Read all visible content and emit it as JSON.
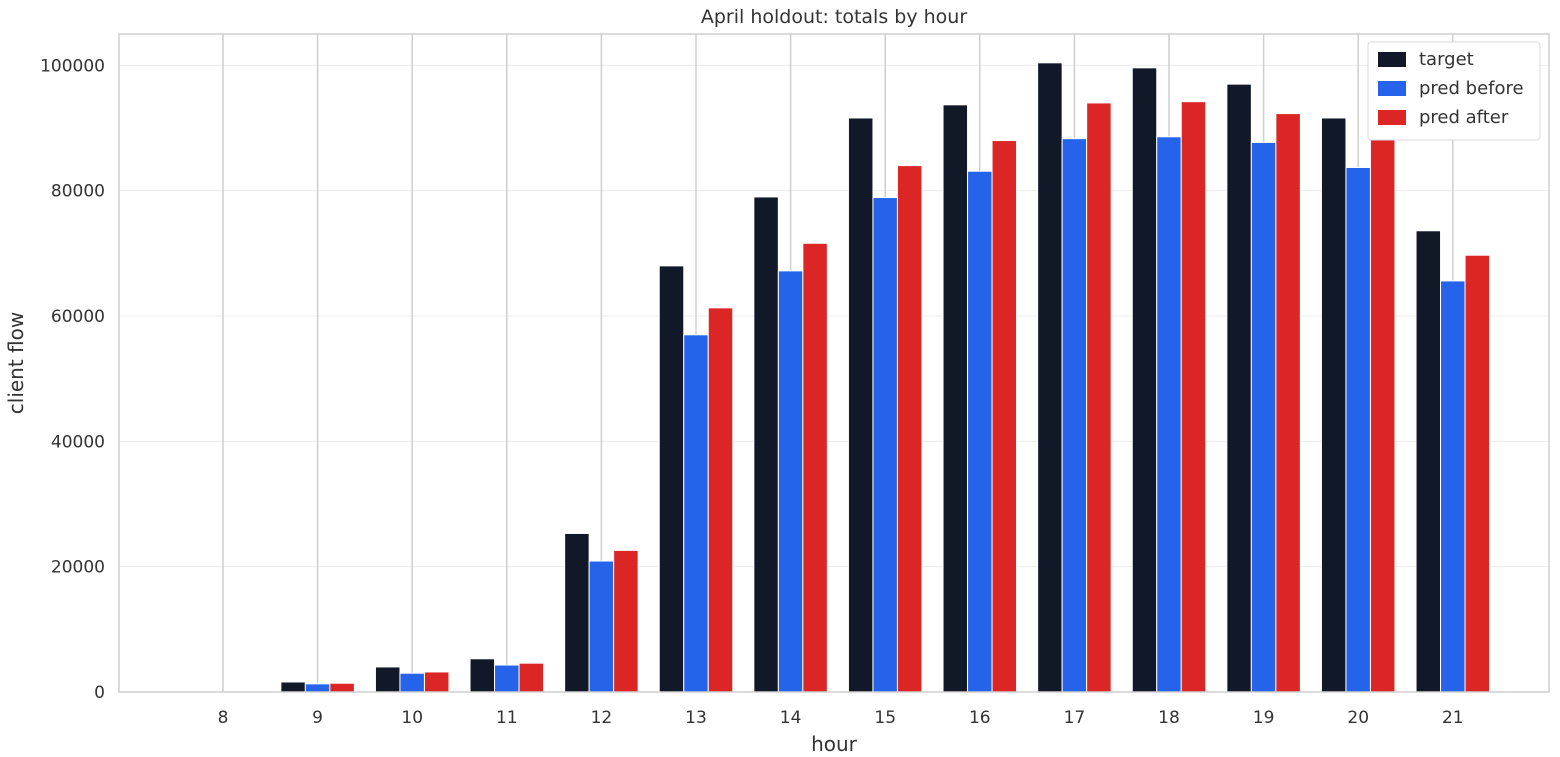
{
  "chart_data": {
    "type": "bar",
    "title": "April holdout: totals by hour",
    "xlabel": "hour",
    "ylabel": "client flow",
    "categories": [
      "8",
      "9",
      "10",
      "11",
      "12",
      "13",
      "14",
      "15",
      "16",
      "17",
      "18",
      "19",
      "20",
      "21"
    ],
    "series": [
      {
        "name": "target",
        "color": "#111827",
        "values": [
          0,
          1600,
          4000,
          5300,
          25300,
          68000,
          79000,
          91600,
          93700,
          100400,
          99600,
          97000,
          91600,
          73600
        ]
      },
      {
        "name": "pred before",
        "color": "#2563eb",
        "values": [
          0,
          1300,
          3000,
          4300,
          20900,
          57000,
          67200,
          78900,
          83100,
          88300,
          88600,
          87700,
          83700,
          65600
        ]
      },
      {
        "name": "pred after",
        "color": "#dc2626",
        "values": [
          0,
          1400,
          3200,
          4600,
          22600,
          61300,
          71600,
          84000,
          88000,
          94000,
          94200,
          92300,
          88400,
          69700
        ]
      }
    ],
    "yticks": [
      0,
      20000,
      40000,
      60000,
      80000,
      100000
    ],
    "ylim": [
      0,
      105000
    ],
    "grid": true,
    "legend_position": "top-right"
  }
}
